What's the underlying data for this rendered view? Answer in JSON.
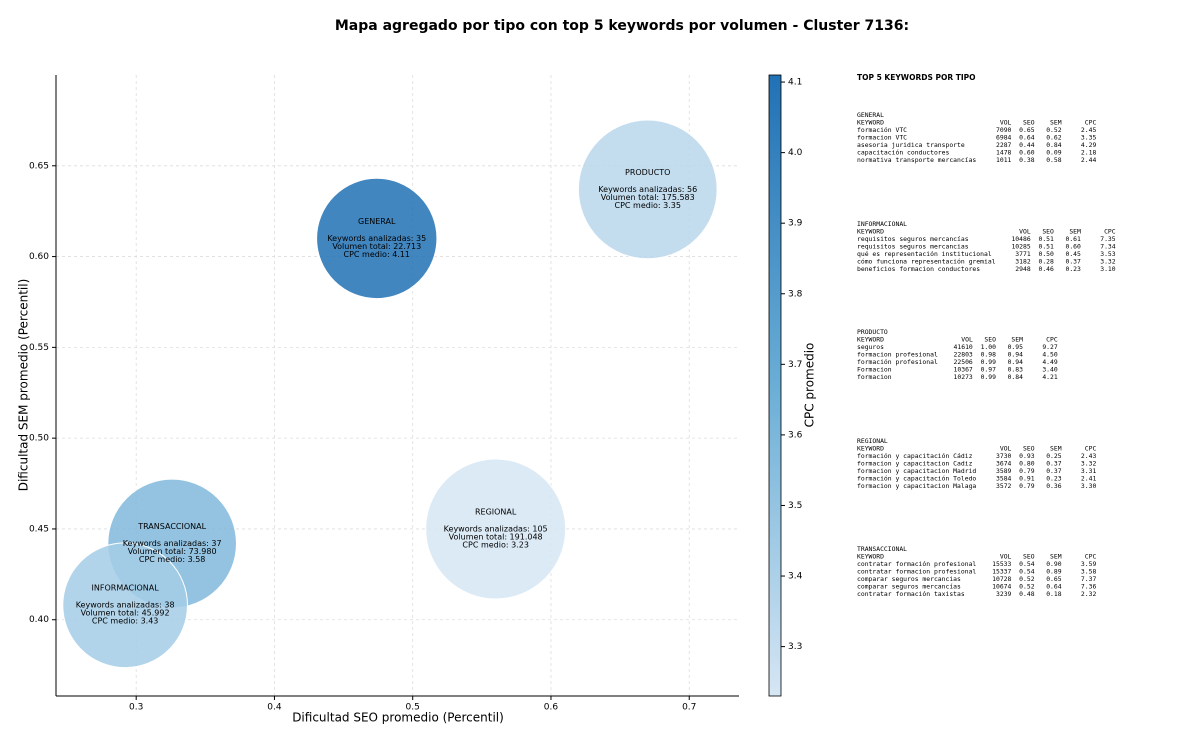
{
  "chart_data": {
    "type": "bubble",
    "title": "Mapa agregado por tipo con top 5 keywords por volumen - Cluster 7136:",
    "x_label": "Dificultad SEO promedio (Percentil)",
    "y_label": "Dificultad SEM promedio (Percentil)",
    "colorbar_label": "CPC promedio",
    "xlim": [
      0.242,
      0.736
    ],
    "ylim": [
      0.358,
      0.7
    ],
    "xticks": [
      0.3,
      0.4,
      0.5,
      0.6,
      0.7
    ],
    "yticks": [
      {
        "value": 0.4,
        "label": "0.40"
      },
      0.45,
      {
        "value": 0.5,
        "label": "0.50"
      },
      0.55,
      {
        "value": 0.6,
        "label": "0.60"
      },
      0.65
    ],
    "clim": [
      3.23,
      4.11
    ],
    "cticks": [
      3.3,
      3.4,
      3.5,
      3.6,
      3.7,
      3.8,
      3.9,
      {
        "value": 4.0,
        "label": "4.0"
      },
      4.1
    ],
    "colormap": [
      "#d6e6f4",
      "#6aaed6",
      "#2171b5"
    ],
    "grid": true,
    "points": [
      {
        "name": "GENERAL",
        "x": 0.474,
        "y": 0.61,
        "size": 22713,
        "color_value": 4.11,
        "annotation": [
          "Keywords analizadas: 35",
          "Volumen total: 22.713",
          "CPC medio: 4.11"
        ]
      },
      {
        "name": "PRODUCTO",
        "x": 0.67,
        "y": 0.637,
        "size": 175583,
        "color_value": 3.35,
        "annotation": [
          "Keywords analizadas: 56",
          "Volumen total: 175.583",
          "CPC medio: 3.35"
        ]
      },
      {
        "name": "REGIONAL",
        "x": 0.56,
        "y": 0.45,
        "size": 191048,
        "color_value": 3.23,
        "annotation": [
          "Keywords analizadas: 105",
          "Volumen total: 191.048",
          "CPC medio: 3.23"
        ]
      },
      {
        "name": "TRANSACCIONAL",
        "x": 0.326,
        "y": 0.442,
        "size": 73980,
        "color_value": 3.58,
        "annotation": [
          "Keywords analizadas: 37",
          "Volumen total: 73.980",
          "CPC medio: 3.58"
        ]
      },
      {
        "name": "INFORMACIONAL",
        "x": 0.292,
        "y": 0.408,
        "size": 45992,
        "color_value": 3.43,
        "annotation": [
          "Keywords analizadas: 38",
          "Volumen total: 45.992",
          "CPC medio: 3.43"
        ]
      }
    ],
    "panel": {
      "title": "TOP 5 KEYWORDS POR TIPO",
      "columns": [
        "KEYWORD",
        "VOL",
        "SEO",
        "SEM",
        "CPC"
      ],
      "groups": [
        {
          "name": "GENERAL",
          "rows": [
            [
              "formación VTC",
              "7090",
              "0.65",
              "0.52",
              "2.45"
            ],
            [
              "formacion VTC",
              "6984",
              "0.64",
              "0.62",
              "3.35"
            ],
            [
              "asesoria juridica transporte",
              "2287",
              "0.44",
              "0.84",
              "4.29"
            ],
            [
              "capacitación conductores",
              "1478",
              "0.60",
              "0.09",
              "2.18"
            ],
            [
              "normativa transporte mercancías",
              "1011",
              "0.38",
              "0.58",
              "2.44"
            ]
          ]
        },
        {
          "name": "INFORMACIONAL",
          "rows": [
            [
              "requisitos seguros mercancías",
              "10486",
              "0.51",
              "0.61",
              "7.35"
            ],
            [
              "requisitos seguros mercancias",
              "10285",
              "0.51",
              "0.60",
              "7.34"
            ],
            [
              "qué es representación institucional",
              "3771",
              "0.50",
              "0.45",
              "3.53"
            ],
            [
              "cómo funciona representación gremial",
              "3182",
              "0.28",
              "0.37",
              "3.32"
            ],
            [
              "beneficios formacion conductores",
              "2948",
              "0.46",
              "0.23",
              "3.10"
            ]
          ]
        },
        {
          "name": "PRODUCTO",
          "rows": [
            [
              "seguros",
              "41610",
              "1.00",
              "0.95",
              "9.27"
            ],
            [
              "formacion profesional",
              "22803",
              "0.98",
              "0.94",
              "4.50"
            ],
            [
              "formación profesional",
              "22506",
              "0.99",
              "0.94",
              "4.49"
            ],
            [
              "Formacion",
              "10367",
              "0.97",
              "0.83",
              "3.40"
            ],
            [
              "formacion",
              "10273",
              "0.99",
              "0.84",
              "4.21"
            ]
          ]
        },
        {
          "name": "REGIONAL",
          "rows": [
            [
              "formación y capacitación Cádiz",
              "3730",
              "0.93",
              "0.25",
              "2.43"
            ],
            [
              "formacion y capacitacion Cadiz",
              "3674",
              "0.80",
              "0.37",
              "3.32"
            ],
            [
              "formacion y capacitacion Madrid",
              "3589",
              "0.79",
              "0.37",
              "3.31"
            ],
            [
              "formación y capacitación Toledo",
              "3584",
              "0.91",
              "0.23",
              "2.41"
            ],
            [
              "formacion y capacitacion Malaga",
              "3572",
              "0.79",
              "0.36",
              "3.30"
            ]
          ]
        },
        {
          "name": "TRANSACCIONAL",
          "rows": [
            [
              "contratar formación profesional",
              "15533",
              "0.54",
              "0.90",
              "3.59"
            ],
            [
              "contratar formacion profesional",
              "15337",
              "0.54",
              "0.89",
              "3.58"
            ],
            [
              "comparar seguros mercancias",
              "10728",
              "0.52",
              "0.65",
              "7.37"
            ],
            [
              "comparar seguros mercancías",
              "10674",
              "0.52",
              "0.64",
              "7.36"
            ],
            [
              "contratar formación taxistas",
              "3239",
              "0.48",
              "0.18",
              "2.32"
            ]
          ]
        }
      ]
    }
  }
}
